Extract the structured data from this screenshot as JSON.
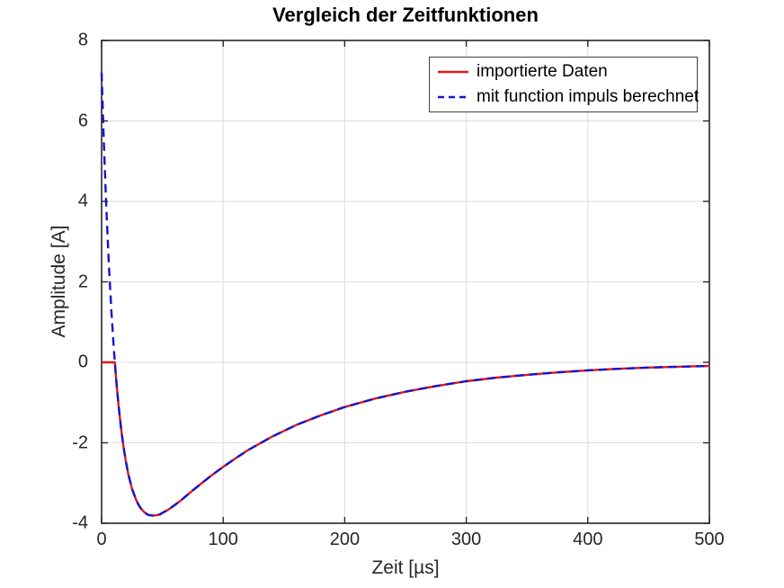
{
  "chart_data": {
    "type": "line",
    "title": "Vergleich der Zeitfunktionen",
    "xlabel": "Zeit [µs]",
    "ylabel": "Amplitude [A]",
    "xlim": [
      0,
      500
    ],
    "ylim": [
      -4,
      8
    ],
    "xticks": [
      0,
      100,
      200,
      300,
      400,
      500
    ],
    "yticks": [
      -4,
      -2,
      0,
      2,
      4,
      6,
      8
    ],
    "grid": true,
    "legend_position": "top-right",
    "colors": {
      "grid": "#dcdcdc",
      "axes": "#262626",
      "tick_text": "#262626",
      "background": "#ffffff"
    },
    "series": [
      {
        "name": "importierte Daten",
        "color": "#e01818",
        "style": "solid",
        "points": [
          [
            0,
            0
          ],
          [
            10.9,
            0
          ],
          [
            11,
            -0.04
          ],
          [
            12,
            -0.42
          ],
          [
            14,
            -1.08
          ],
          [
            16,
            -1.63
          ],
          [
            18,
            -2.09
          ],
          [
            20,
            -2.46
          ],
          [
            22,
            -2.78
          ],
          [
            25,
            -3.14
          ],
          [
            28,
            -3.39
          ],
          [
            30,
            -3.52
          ],
          [
            32,
            -3.62
          ],
          [
            35,
            -3.72
          ],
          [
            38,
            -3.79
          ],
          [
            40,
            -3.8
          ],
          [
            42,
            -3.81
          ],
          [
            45,
            -3.8
          ],
          [
            48,
            -3.78
          ],
          [
            50,
            -3.74
          ],
          [
            55,
            -3.66
          ],
          [
            60,
            -3.55
          ],
          [
            65,
            -3.44
          ],
          [
            70,
            -3.31
          ],
          [
            80,
            -3.06
          ],
          [
            90,
            -2.82
          ],
          [
            100,
            -2.6
          ],
          [
            110,
            -2.39
          ],
          [
            120,
            -2.19
          ],
          [
            140,
            -1.85
          ],
          [
            160,
            -1.56
          ],
          [
            180,
            -1.32
          ],
          [
            200,
            -1.11
          ],
          [
            225,
            -0.9
          ],
          [
            250,
            -0.73
          ],
          [
            275,
            -0.59
          ],
          [
            300,
            -0.47
          ],
          [
            325,
            -0.38
          ],
          [
            350,
            -0.31
          ],
          [
            375,
            -0.25
          ],
          [
            400,
            -0.2
          ],
          [
            425,
            -0.16
          ],
          [
            450,
            -0.13
          ],
          [
            475,
            -0.11
          ],
          [
            500,
            -0.09
          ]
        ]
      },
      {
        "name": "mit function impuls berechnet",
        "color": "#1414cc",
        "style": "dashed",
        "points": [
          [
            0,
            7.2
          ],
          [
            1,
            6.23
          ],
          [
            2,
            5.34
          ],
          [
            3,
            4.52
          ],
          [
            4,
            3.76
          ],
          [
            5,
            3.07
          ],
          [
            6,
            2.43
          ],
          [
            7,
            1.85
          ],
          [
            8,
            1.31
          ],
          [
            9,
            0.82
          ],
          [
            10,
            0.37
          ],
          [
            11,
            -0.04
          ],
          [
            12,
            -0.42
          ],
          [
            14,
            -1.08
          ],
          [
            16,
            -1.63
          ],
          [
            18,
            -2.09
          ],
          [
            20,
            -2.46
          ],
          [
            22,
            -2.78
          ],
          [
            25,
            -3.14
          ],
          [
            28,
            -3.39
          ],
          [
            30,
            -3.52
          ],
          [
            32,
            -3.62
          ],
          [
            35,
            -3.72
          ],
          [
            38,
            -3.79
          ],
          [
            40,
            -3.8
          ],
          [
            42,
            -3.81
          ],
          [
            45,
            -3.8
          ],
          [
            48,
            -3.78
          ],
          [
            50,
            -3.74
          ],
          [
            55,
            -3.66
          ],
          [
            60,
            -3.55
          ],
          [
            65,
            -3.44
          ],
          [
            70,
            -3.31
          ],
          [
            80,
            -3.06
          ],
          [
            90,
            -2.82
          ],
          [
            100,
            -2.6
          ],
          [
            110,
            -2.39
          ],
          [
            120,
            -2.19
          ],
          [
            140,
            -1.85
          ],
          [
            160,
            -1.56
          ],
          [
            180,
            -1.32
          ],
          [
            200,
            -1.11
          ],
          [
            225,
            -0.9
          ],
          [
            250,
            -0.73
          ],
          [
            275,
            -0.59
          ],
          [
            300,
            -0.47
          ],
          [
            325,
            -0.38
          ],
          [
            350,
            -0.31
          ],
          [
            375,
            -0.25
          ],
          [
            400,
            -0.2
          ],
          [
            425,
            -0.16
          ],
          [
            450,
            -0.13
          ],
          [
            475,
            -0.11
          ],
          [
            500,
            -0.09
          ]
        ]
      }
    ]
  }
}
